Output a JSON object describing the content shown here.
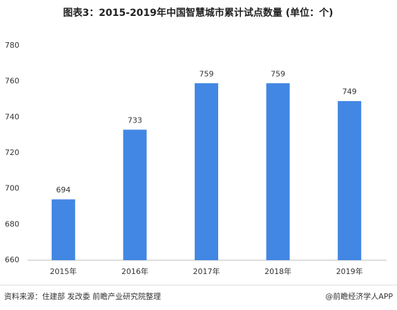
{
  "chart_data": {
    "type": "bar",
    "title": "图表3：2015-2019年中国智慧城市累计试点数量 (单位：个)",
    "categories": [
      "2015年",
      "2016年",
      "2017年",
      "2018年",
      "2019年"
    ],
    "values": [
      694,
      733,
      759,
      759,
      749
    ],
    "color": "#4287e3",
    "ylim": [
      660,
      780
    ],
    "yticks": [
      660,
      680,
      700,
      720,
      740,
      760,
      780
    ],
    "grid": false,
    "show_value_labels": true,
    "source": "资料来源：住建部 发改委 前瞻产业研究院整理",
    "credit": "@前瞻经济学人APP"
  }
}
